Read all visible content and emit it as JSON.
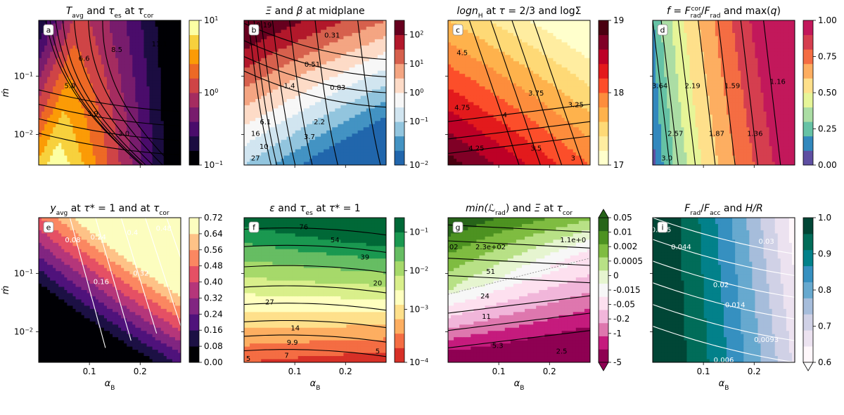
{
  "figure": {
    "x_axis_label": "α",
    "x_axis_sub": "B",
    "y_axis_label": "ṁ"
  },
  "colors": {
    "inferno": [
      "#000004",
      "#1b0c41",
      "#4a0c6b",
      "#781c6d",
      "#a52c60",
      "#cf4446",
      "#ed6925",
      "#fb9b06",
      "#f7d13d",
      "#fcffa4"
    ],
    "rdbu": [
      "#2166ac",
      "#4393c3",
      "#92c5de",
      "#d1e5f0",
      "#f7f7f7",
      "#fddbc7",
      "#f4a582",
      "#d6604d",
      "#b2182b",
      "#67001f"
    ],
    "ylorrd": [
      "#ffffcc",
      "#ffeda0",
      "#fed976",
      "#feb24c",
      "#fd8d3c",
      "#fc4e2a",
      "#e31a1c",
      "#bd0026",
      "#800026",
      "#4a0010"
    ],
    "spectral": [
      "#5e4fa2",
      "#3288bd",
      "#66c2a5",
      "#abdda4",
      "#e6f598",
      "#fee08b",
      "#fdae61",
      "#f46d43",
      "#d53e4f",
      "#c2185b"
    ],
    "magma": [
      "#000004",
      "#1c1044",
      "#4f127b",
      "#812581",
      "#b5367a",
      "#e55064",
      "#fb8761",
      "#fec287",
      "#fcfdbf"
    ],
    "rdylgn": [
      "#d73027",
      "#f46d43",
      "#fdae61",
      "#fee08b",
      "#ffffbf",
      "#d9ef8b",
      "#a6d96a",
      "#66bd63",
      "#1a9850",
      "#006837"
    ],
    "piyg": [
      "#8e0152",
      "#c51b7d",
      "#de77ae",
      "#f1b6da",
      "#fde0ef",
      "#f7f7f7",
      "#e6f5d0",
      "#b8e186",
      "#7fbc41",
      "#4d9221",
      "#276419"
    ],
    "pubugn": [
      "#fff7fb",
      "#ece2f0",
      "#d0d1e6",
      "#a6bddb",
      "#67a9cf",
      "#3690c0",
      "#02818a",
      "#016c59",
      "#014636"
    ]
  },
  "chart_data": [
    {
      "id": "a",
      "type": "contour",
      "colormap": "inferno",
      "line_color": "black",
      "title": "T_avg and τ_es at τ_cor",
      "title_parts": {
        "m1": "T",
        "s1": "avg",
        "t1": " and ",
        "m2": "τ",
        "s2": "es",
        "t2": " at ",
        "m3": "τ",
        "s3": "cor"
      },
      "panel_label": "a",
      "xlim": [
        0,
        0.28
      ],
      "ylim": [
        0.003,
        0.9
      ],
      "colorbar": {
        "ticks": [
          {
            "base": "10",
            "exp": "1",
            "frac": 1.0
          },
          {
            "base": "10",
            "exp": "0",
            "frac": 0.5
          },
          {
            "base": "10",
            "exp": "−1",
            "frac": 0.0
          }
        ]
      },
      "contour_labels": [
        "11.1",
        "8.5",
        "6.6",
        "5.0",
        "3.9",
        "3.0"
      ]
    },
    {
      "id": "b",
      "type": "contour",
      "colormap": "rdbu",
      "line_color": "black",
      "title": "Ξ and β at midplane",
      "title_parts": {
        "m1": "Ξ",
        "t1": " and ",
        "m2": "β",
        "t2": " at midplane"
      },
      "panel_label": "b",
      "xlim": [
        0,
        0.28
      ],
      "ylim": [
        0.003,
        0.9
      ],
      "colorbar": {
        "ticks": [
          {
            "base": "10",
            "exp": "2",
            "frac": 0.9
          },
          {
            "base": "10",
            "exp": "1",
            "frac": 0.7
          },
          {
            "base": "10",
            "exp": "0",
            "frac": 0.5
          },
          {
            "base": "10",
            "exp": "−1",
            "frac": 0.3
          },
          {
            "base": "10",
            "exp": "−2",
            "frac": 0.0
          }
        ]
      },
      "contour_labels": [
        "0.19",
        "0.31",
        "0.51",
        "0.83",
        "1.4",
        "2.2",
        "3.7",
        "6.1",
        "10",
        "16",
        "27"
      ]
    },
    {
      "id": "c",
      "type": "contour",
      "colormap": "ylorrd",
      "line_color": "black",
      "title": "log n_H at τ = 2/3 and log Σ",
      "title_parts": {
        "m1": "logn",
        "s1": "H",
        "t1": " at ",
        "m2": "τ",
        "t2": " = 2/3 and logΣ"
      },
      "panel_label": "c",
      "xlim": [
        0,
        0.28
      ],
      "ylim": [
        0.003,
        0.9
      ],
      "colorbar": {
        "ticks": [
          {
            "base": "19",
            "exp": "",
            "frac": 1.0
          },
          {
            "base": "18",
            "exp": "",
            "frac": 0.5
          },
          {
            "base": "17",
            "exp": "",
            "frac": 0.0
          }
        ]
      },
      "contour_labels": [
        "4.5",
        "4.75",
        "4",
        "3.75",
        "3.25",
        "4.25",
        "3.5",
        "3"
      ]
    },
    {
      "id": "d",
      "type": "contour",
      "colormap": "spectral",
      "line_color": "black",
      "title": "f = F_rad^cor / F_rad and max(q)",
      "title_parts": {
        "m1": "f",
        "t1": " = ",
        "m2": "F",
        "s2": "rad",
        "p2": "cor",
        "t2": "/",
        "m3": "F",
        "s3": "rad",
        "t3": " and max(",
        "m4": "q",
        "t4": ")"
      },
      "panel_label": "d",
      "xlim": [
        0,
        0.28
      ],
      "ylim": [
        0.003,
        0.9
      ],
      "colorbar": {
        "ticks": [
          {
            "base": "1.00",
            "exp": "",
            "frac": 1.0
          },
          {
            "base": "0.75",
            "exp": "",
            "frac": 0.75
          },
          {
            "base": "0.50",
            "exp": "",
            "frac": 0.5
          },
          {
            "base": "0.25",
            "exp": "",
            "frac": 0.25
          },
          {
            "base": "0.00",
            "exp": "",
            "frac": 0.0
          }
        ]
      },
      "contour_labels": [
        "3.64",
        "2.19",
        "1.59",
        "1.16",
        "2.57",
        "1.87",
        "1.36",
        "3.0"
      ]
    },
    {
      "id": "e",
      "type": "contour",
      "colormap": "magma",
      "line_color": "white",
      "title": "y_avg at τ* = 1 and at τ_cor",
      "title_parts": {
        "m1": "y",
        "s1": "avg",
        "t1": " at ",
        "m2": "τ",
        "t2": "* = 1 and at ",
        "m3": "τ",
        "s3": "cor"
      },
      "panel_label": "e",
      "xlim": [
        0,
        0.28
      ],
      "ylim": [
        0.003,
        0.9
      ],
      "colorbar": {
        "ticks": [
          {
            "base": "0.72",
            "exp": "",
            "frac": 1.0
          },
          {
            "base": "0.64",
            "exp": "",
            "frac": 0.8889
          },
          {
            "base": "0.56",
            "exp": "",
            "frac": 0.7778
          },
          {
            "base": "0.48",
            "exp": "",
            "frac": 0.6667
          },
          {
            "base": "0.40",
            "exp": "",
            "frac": 0.5556
          },
          {
            "base": "0.32",
            "exp": "",
            "frac": 0.4444
          },
          {
            "base": "0.24",
            "exp": "",
            "frac": 0.3333
          },
          {
            "base": "0.16",
            "exp": "",
            "frac": 0.2222
          },
          {
            "base": "0.08",
            "exp": "",
            "frac": 0.1111
          },
          {
            "base": "0.00",
            "exp": "",
            "frac": 0.0
          }
        ]
      },
      "contour_labels": [
        "0.08",
        "0.24",
        "0.4",
        "0.48",
        "0.16",
        "0.32"
      ]
    },
    {
      "id": "f",
      "type": "contour",
      "colormap": "rdylgn",
      "line_color": "black",
      "title": "ε and τ_es at τ* = 1",
      "title_parts": {
        "m1": "ε",
        "t1": " and ",
        "m2": "τ",
        "s2": "es",
        "t2": " at ",
        "m3": "τ",
        "t3": "* = 1"
      },
      "panel_label": "f",
      "xlim": [
        0,
        0.28
      ],
      "ylim": [
        0.003,
        0.9
      ],
      "colorbar": {
        "ticks": [
          {
            "base": "10",
            "exp": "−1",
            "frac": 0.9
          },
          {
            "base": "10",
            "exp": "−2",
            "frac": 0.6333
          },
          {
            "base": "10",
            "exp": "−3",
            "frac": 0.3667
          },
          {
            "base": "10",
            "exp": "−4",
            "frac": 0.0
          }
        ]
      },
      "contour_labels": [
        "76",
        "54",
        "39",
        "20",
        "27",
        "14",
        "9.9",
        "7",
        "5",
        "5"
      ]
    },
    {
      "id": "g",
      "type": "contour",
      "colormap": "piyg",
      "line_color": "black",
      "title": "min(ℒ_rad) and Ξ at τ_cor",
      "title_parts": {
        "m1": "min(ℒ",
        "s1": "rad",
        "t1": ") and ",
        "m2": "Ξ",
        "t2": " at ",
        "m3": "τ",
        "s3": "cor"
      },
      "panel_label": "g",
      "xlim": [
        0,
        0.28
      ],
      "ylim": [
        0.003,
        0.9
      ],
      "colorbar": {
        "extend": "both",
        "ticks": [
          {
            "base": "0.05",
            "exp": "",
            "frac": 1.0
          },
          {
            "base": "0.01",
            "exp": "",
            "frac": 0.9
          },
          {
            "base": "0.002",
            "exp": "",
            "frac": 0.8
          },
          {
            "base": "0.0005",
            "exp": "",
            "frac": 0.7
          },
          {
            "base": "0",
            "exp": "",
            "frac": 0.6
          },
          {
            "base": "-0.015",
            "exp": "",
            "frac": 0.5
          },
          {
            "base": "-0.05",
            "exp": "",
            "frac": 0.4
          },
          {
            "base": "-0.2",
            "exp": "",
            "frac": 0.3
          },
          {
            "base": "-1",
            "exp": "",
            "frac": 0.2
          },
          {
            "base": "-5",
            "exp": "",
            "frac": 0.0
          }
        ]
      },
      "contour_labels": [
        "+02",
        "1.1e+0",
        "2.3e+02",
        "51",
        "24",
        "11",
        "5.3",
        "2.5"
      ]
    },
    {
      "id": "i",
      "type": "contour",
      "colormap": "pubugn",
      "line_color": "white",
      "title": "F_rad/F_acc and H/R",
      "title_parts": {
        "m1": "F",
        "s1": "rad",
        "t1": "/",
        "m2": "F",
        "s2": "acc",
        "t2": " and ",
        "m3": "H/R"
      },
      "panel_label": "i",
      "xlim": [
        0,
        0.28
      ],
      "ylim": [
        0.003,
        0.9
      ],
      "colorbar": {
        "extend": "min",
        "ticks": [
          {
            "base": "1.0",
            "exp": "",
            "frac": 1.0
          },
          {
            "base": "0.9",
            "exp": "",
            "frac": 0.75
          },
          {
            "base": "0.8",
            "exp": "",
            "frac": 0.5
          },
          {
            "base": "0.7",
            "exp": "",
            "frac": 0.25
          },
          {
            "base": "0.6",
            "exp": "",
            "frac": 0.0
          }
        ]
      },
      "contour_labels": [
        "0.065",
        "0.044",
        "0.03",
        "0.02",
        "0.014",
        "0.0093",
        "0.006"
      ]
    }
  ],
  "axes": {
    "xticks": [
      {
        "value": 0.1,
        "label": "0.1"
      },
      {
        "value": 0.2,
        "label": "0.2"
      }
    ],
    "yticks": [
      {
        "base": "10",
        "exp": "−1",
        "value": 0.1
      },
      {
        "base": "10",
        "exp": "−2",
        "value": 0.01
      }
    ]
  }
}
